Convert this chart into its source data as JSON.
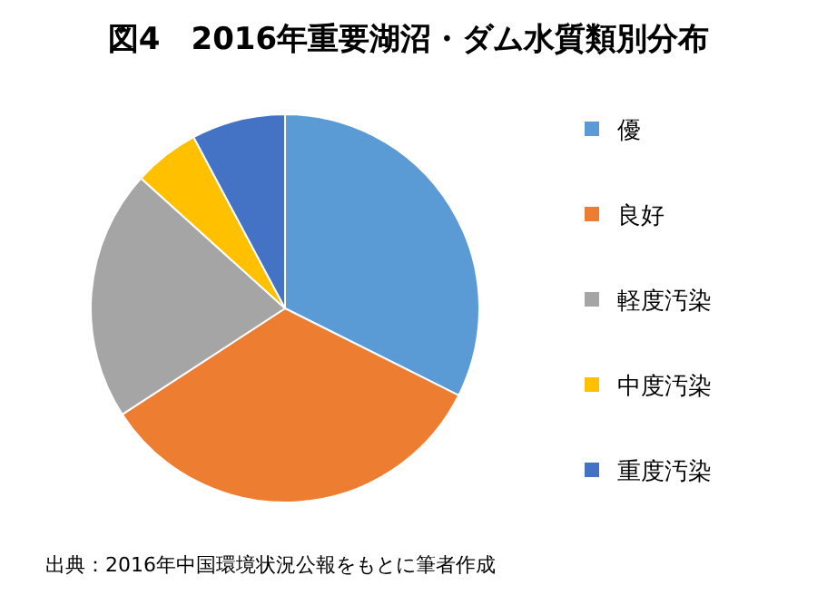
{
  "chart_data": {
    "type": "pie",
    "title": "図4　2016年重要湖沼・ダム水質類別分布",
    "categories": [
      "優",
      "良好",
      "軽度汚染",
      "中度汚染",
      "重度汚染"
    ],
    "values": [
      32.4,
      33.4,
      20.9,
      5.5,
      7.8
    ],
    "colors": [
      "#5b9bd5",
      "#ed7d31",
      "#a5a5a5",
      "#ffc000",
      "#4472c4"
    ],
    "legend": "right",
    "annotations": [
      "出典：2016年中国環境状況公報をもとに筆者作成"
    ]
  }
}
